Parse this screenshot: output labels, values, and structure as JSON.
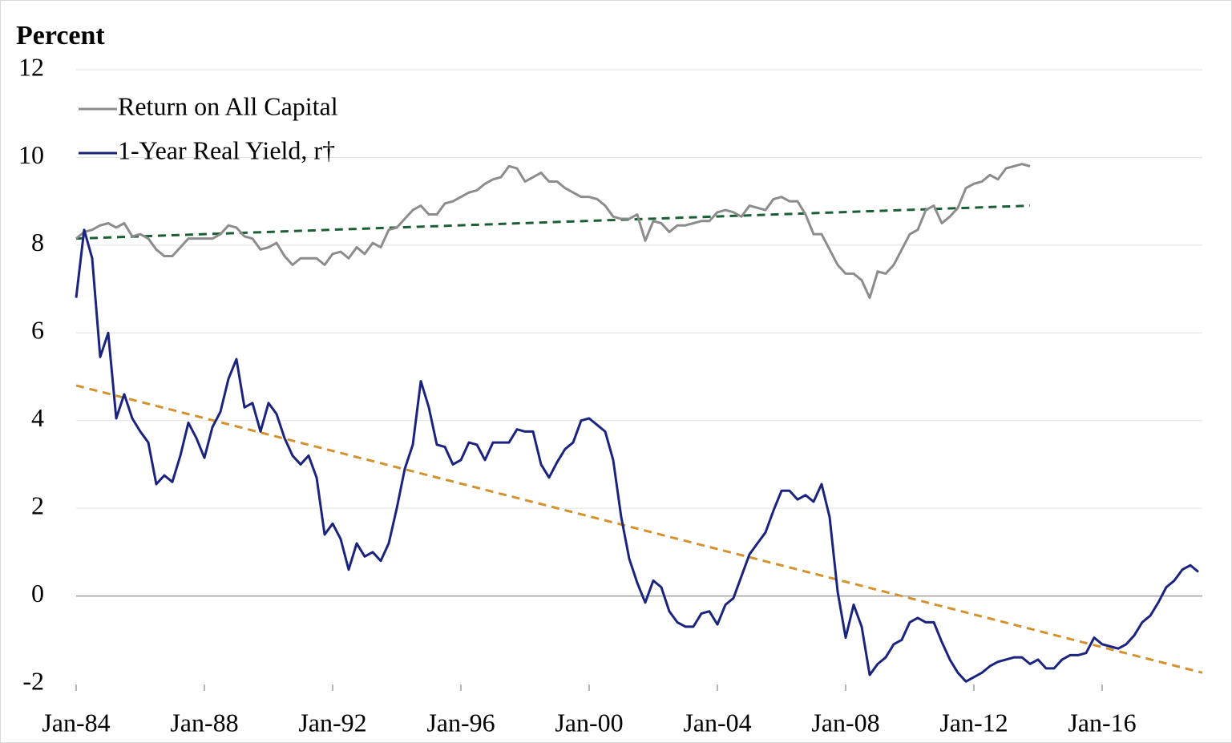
{
  "chart_data": {
    "type": "line",
    "y_label": "Percent",
    "legend": "upper-left",
    "grid": true,
    "x": [
      1984,
      1984.25,
      1984.5,
      1984.75,
      1985,
      1985.25,
      1985.5,
      1985.75,
      1986,
      1986.25,
      1986.5,
      1986.75,
      1987,
      1987.25,
      1987.5,
      1987.75,
      1988,
      1988.25,
      1988.5,
      1988.75,
      1989,
      1989.25,
      1989.5,
      1989.75,
      1990,
      1990.25,
      1990.5,
      1990.75,
      1991,
      1991.25,
      1991.5,
      1991.75,
      1992,
      1992.25,
      1992.5,
      1992.75,
      1993,
      1993.25,
      1993.5,
      1993.75,
      1994,
      1994.25,
      1994.5,
      1994.75,
      1995,
      1995.25,
      1995.5,
      1995.75,
      1996,
      1996.25,
      1996.5,
      1996.75,
      1997,
      1997.25,
      1997.5,
      1997.75,
      1998,
      1998.25,
      1998.5,
      1998.75,
      1999,
      1999.25,
      1999.5,
      1999.75,
      2000,
      2000.25,
      2000.5,
      2000.75,
      2001,
      2001.25,
      2001.5,
      2001.75,
      2002,
      2002.25,
      2002.5,
      2002.75,
      2003,
      2003.25,
      2003.5,
      2003.75,
      2004,
      2004.25,
      2004.5,
      2004.75,
      2005,
      2005.25,
      2005.5,
      2005.75,
      2006,
      2006.25,
      2006.5,
      2006.75,
      2007,
      2007.25,
      2007.5,
      2007.75,
      2008,
      2008.25,
      2008.5,
      2008.75,
      2009,
      2009.25,
      2009.5,
      2009.75,
      2010,
      2010.25,
      2010.5,
      2010.75,
      2011,
      2011.25,
      2011.5,
      2011.75,
      2012,
      2012.25,
      2012.5,
      2012.75,
      2013,
      2013.25,
      2013.5,
      2013.75,
      2014,
      2014.25,
      2014.5,
      2014.75,
      2015,
      2015.25,
      2015.5,
      2015.75,
      2016,
      2016.25,
      2016.5,
      2016.75,
      2017,
      2017.25,
      2017.5,
      2017.75,
      2018,
      2018.25,
      2018.5,
      2018.75,
      2019
    ],
    "series": [
      {
        "name": "Return on All Capital",
        "color": "#8c8c8c",
        "values": [
          8.15,
          8.3,
          8.35,
          8.45,
          8.5,
          8.4,
          8.5,
          8.2,
          8.25,
          8.15,
          7.9,
          7.75,
          7.75,
          7.95,
          8.15,
          8.15,
          8.15,
          8.15,
          8.25,
          8.45,
          8.4,
          8.2,
          8.15,
          7.9,
          7.95,
          8.05,
          7.75,
          7.55,
          7.7,
          7.7,
          7.7,
          7.55,
          7.8,
          7.85,
          7.7,
          7.95,
          7.8,
          8.05,
          7.95,
          8.35,
          8.4,
          8.6,
          8.8,
          8.9,
          8.7,
          8.7,
          8.95,
          9.0,
          9.1,
          9.2,
          9.25,
          9.4,
          9.5,
          9.55,
          9.8,
          9.75,
          9.45,
          9.55,
          9.65,
          9.45,
          9.45,
          9.3,
          9.2,
          9.1,
          9.1,
          9.05,
          8.9,
          8.65,
          8.6,
          8.6,
          8.7,
          8.1,
          8.55,
          8.5,
          8.3,
          8.45,
          8.45,
          8.5,
          8.55,
          8.55,
          8.75,
          8.8,
          8.75,
          8.65,
          8.9,
          8.85,
          8.8,
          9.05,
          9.1,
          9.0,
          9.0,
          8.7,
          8.25,
          8.25,
          7.9,
          7.55,
          7.35,
          7.35,
          7.2,
          6.8,
          7.4,
          7.35,
          7.55,
          7.9,
          8.25,
          8.35,
          8.8,
          8.9,
          8.5,
          8.65,
          8.85,
          9.3,
          9.4,
          9.45,
          9.6,
          9.5,
          9.75,
          9.8,
          9.85,
          9.8,
          null,
          null,
          null,
          null,
          null,
          null,
          null,
          null,
          null,
          null,
          null,
          null,
          null,
          null,
          null,
          null,
          null,
          null,
          null,
          null,
          null
        ]
      },
      {
        "name": "1-Year Real Yield, r†",
        "color": "#1a237e",
        "values": [
          6.8,
          8.35,
          7.7,
          5.45,
          6.0,
          4.05,
          4.6,
          4.05,
          3.75,
          3.5,
          2.55,
          2.75,
          2.6,
          3.2,
          3.95,
          3.6,
          3.15,
          3.85,
          4.2,
          4.95,
          5.4,
          4.3,
          4.4,
          3.75,
          4.4,
          4.15,
          3.6,
          3.2,
          3.0,
          3.2,
          2.7,
          1.4,
          1.65,
          1.3,
          0.6,
          1.2,
          0.9,
          1.0,
          0.8,
          1.2,
          2.0,
          2.9,
          3.45,
          4.9,
          4.3,
          3.45,
          3.4,
          3.0,
          3.1,
          3.5,
          3.45,
          3.1,
          3.5,
          3.5,
          3.5,
          3.8,
          3.75,
          3.75,
          3.0,
          2.7,
          3.05,
          3.35,
          3.5,
          4.0,
          4.05,
          3.9,
          3.75,
          3.1,
          1.8,
          0.85,
          0.3,
          -0.15,
          0.35,
          0.2,
          -0.35,
          -0.6,
          -0.7,
          -0.7,
          -0.4,
          -0.35,
          -0.65,
          -0.2,
          -0.05,
          0.45,
          0.95,
          1.2,
          1.45,
          1.95,
          2.4,
          2.4,
          2.2,
          2.3,
          2.15,
          2.55,
          1.8,
          0.1,
          -0.95,
          -0.2,
          -0.7,
          -1.8,
          -1.55,
          -1.4,
          -1.1,
          -1.0,
          -0.6,
          -0.5,
          -0.6,
          -0.6,
          -1.05,
          -1.45,
          -1.75,
          -1.95,
          -1.85,
          -1.75,
          -1.6,
          -1.5,
          -1.45,
          -1.4,
          -1.4,
          -1.55,
          -1.45,
          -1.65,
          -1.65,
          -1.45,
          -1.35,
          -1.35,
          -1.3,
          -0.95,
          -1.1,
          -1.15,
          -1.2,
          -1.1,
          -0.9,
          -0.6,
          -0.45,
          -0.15,
          0.2,
          0.35,
          0.6,
          0.7,
          0.55
        ]
      }
    ],
    "trendlines": [
      {
        "color": "#1b5e34",
        "x": [
          1984,
          2013.75
        ],
        "values": [
          8.15,
          8.9
        ]
      },
      {
        "color": "#d4922e",
        "x": [
          1984,
          2019.125
        ],
        "values": [
          4.8,
          -1.75
        ]
      }
    ],
    "xlim": [
      1984,
      2019.125
    ],
    "xticks": [
      {
        "value": 1984,
        "label": "Jan-84"
      },
      {
        "value": 1988,
        "label": "Jan-88"
      },
      {
        "value": 1992,
        "label": "Jan-92"
      },
      {
        "value": 1996,
        "label": "Jan-96"
      },
      {
        "value": 2000,
        "label": "Jan-00"
      },
      {
        "value": 2004,
        "label": "Jan-04"
      },
      {
        "value": 2008,
        "label": "Jan-08"
      },
      {
        "value": 2012,
        "label": "Jan-12"
      },
      {
        "value": 2016,
        "label": "Jan-16"
      }
    ],
    "ylim": [
      -2,
      12
    ],
    "yticks": [
      -2,
      0,
      2,
      4,
      6,
      8,
      10,
      12
    ]
  }
}
